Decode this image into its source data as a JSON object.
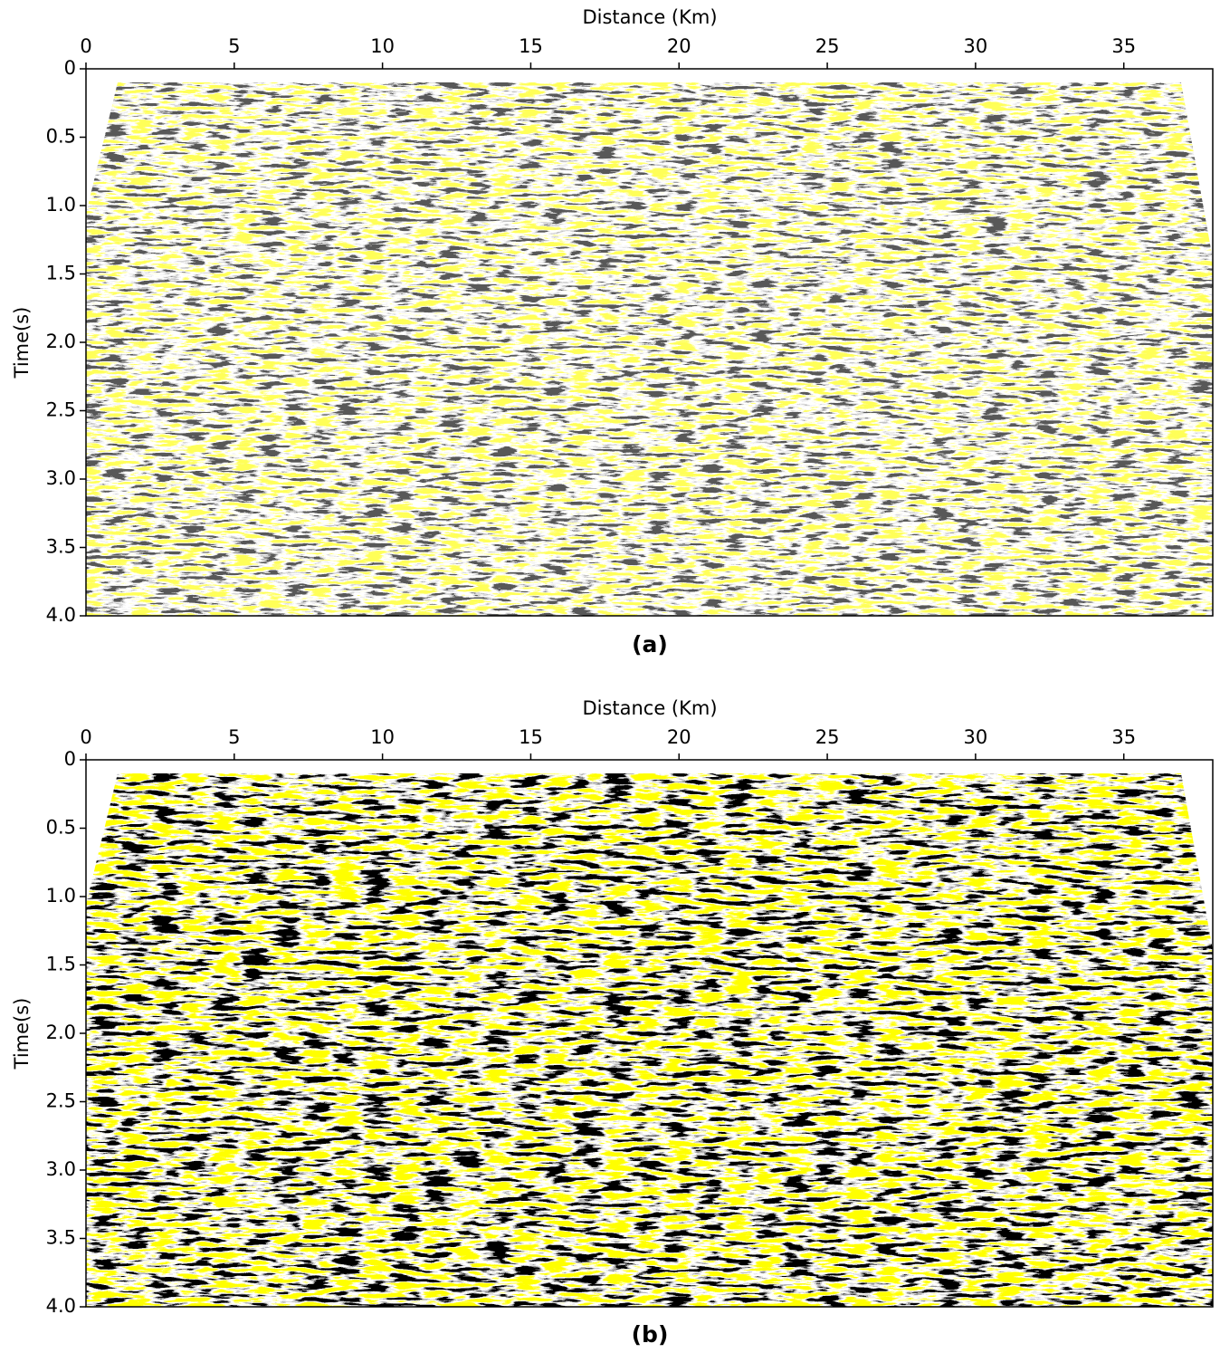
{
  "chart_data": [
    {
      "type": "image",
      "xlabel": "Distance (Km)",
      "ylabel": "Time(s)",
      "caption": "(a)",
      "xlim": [
        0,
        38
      ],
      "xticks": [
        0,
        5,
        10,
        15,
        20,
        25,
        30,
        35
      ],
      "ylim": [
        0,
        4
      ],
      "y_inverted": true,
      "yticks": [
        0,
        0.5,
        {
          "value": 1,
          "label": "1.0"
        },
        1.5,
        {
          "value": 2,
          "label": "2.0"
        },
        2.5,
        {
          "value": 3,
          "label": "3.0"
        },
        3.5,
        {
          "value": 4,
          "label": "4.0"
        }
      ]
    },
    {
      "type": "image",
      "xlabel": "Distance (Km)",
      "ylabel": "Time(s)",
      "caption": "(b)",
      "xlim": [
        0,
        38
      ],
      "xticks": [
        0,
        5,
        10,
        15,
        20,
        25,
        30,
        35
      ],
      "ylim": [
        0,
        4
      ],
      "y_inverted": true,
      "yticks": [
        0,
        0.5,
        {
          "value": 1,
          "label": "1.0"
        },
        1.5,
        {
          "value": 2,
          "label": "2.0"
        },
        2.5,
        {
          "value": 3,
          "label": "3.0"
        },
        3.5,
        {
          "value": 4,
          "label": "4.0"
        }
      ]
    }
  ]
}
